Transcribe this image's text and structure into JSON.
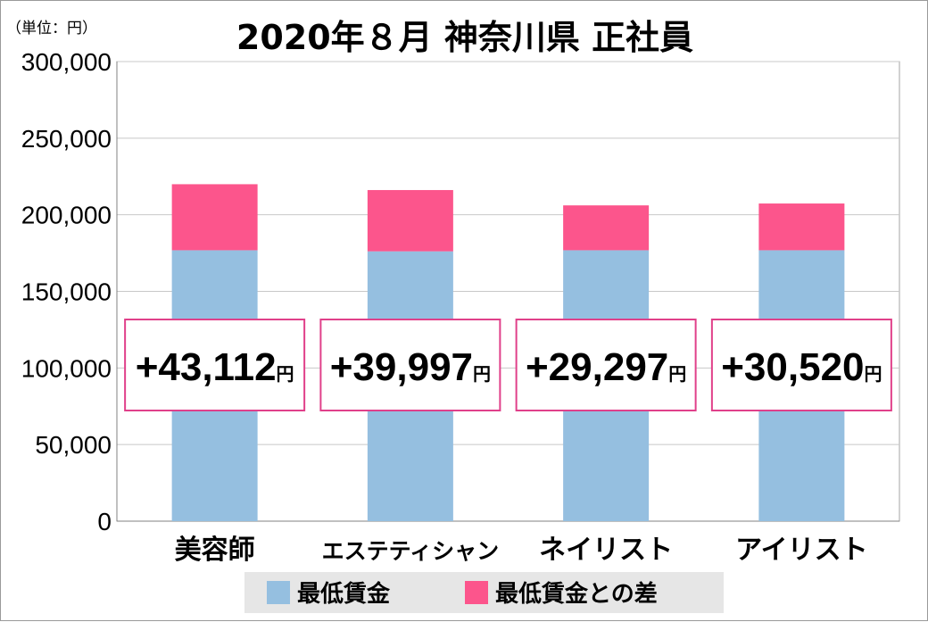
{
  "chart_data": {
    "type": "bar",
    "stacked": true,
    "title": "2020年８月 神奈川県 正社員",
    "unit_label": "（単位：円）",
    "categories": [
      "美容師",
      "エステティシャン",
      "ネイリスト",
      "アイリスト"
    ],
    "series": [
      {
        "name": "最低賃金",
        "color": "#95bfe0",
        "values": [
          176833,
          176137,
          176833,
          176833
        ]
      },
      {
        "name": "最低賃金との差",
        "color": "#fc558c",
        "values": [
          43112,
          39997,
          29297,
          30520
        ]
      }
    ],
    "difference_labels": [
      "+43,112",
      "+39,997",
      "+29,297",
      "+30,520"
    ],
    "difference_suffix": "円",
    "y_ticks": [
      "0",
      "50,000",
      "100,000",
      "150,000",
      "200,000",
      "250,000",
      "300,000"
    ],
    "ylim": [
      0,
      300000
    ],
    "grid": true,
    "legend_position": "bottom",
    "label_box_border_color": "#e0408a",
    "grid_color": "#c8c8c8"
  }
}
